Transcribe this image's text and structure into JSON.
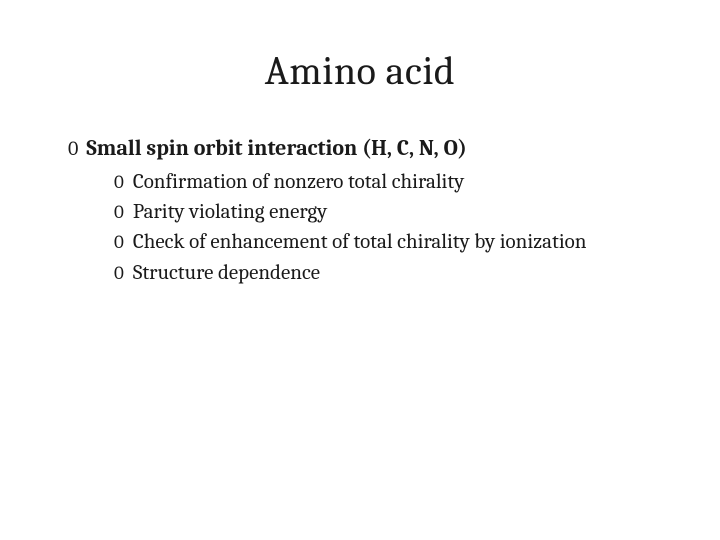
{
  "slide": {
    "title": "Amino acid",
    "bullet_glyph": "0",
    "level1": {
      "text": "Small spin orbit interaction (H, C, N, O)"
    },
    "level2_items": [
      {
        "text": "Confirmation of nonzero total chirality"
      },
      {
        "text": "Parity violating energy"
      },
      {
        "text": "Check of enhancement of total chirality by ionization"
      },
      {
        "text": "Structure dependence"
      }
    ],
    "colors": {
      "background": "#ffffff",
      "text": "#1a1a1a"
    },
    "typography": {
      "title_fontsize": 40,
      "level1_fontsize": 22,
      "level2_fontsize": 21,
      "font_family": "Cambria, Georgia, serif"
    }
  }
}
